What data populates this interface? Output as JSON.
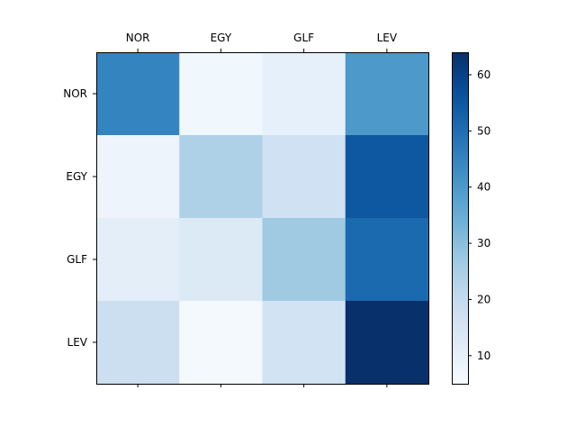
{
  "chart_data": {
    "type": "heatmap",
    "title": "",
    "xlabel": "",
    "ylabel": "",
    "x_categories": [
      "NOR",
      "EGY",
      "GLF",
      "LEV"
    ],
    "y_categories": [
      "NOR",
      "EGY",
      "GLF",
      "LEV"
    ],
    "x_tick_position": "top",
    "values": [
      [
        45,
        7,
        10,
        40
      ],
      [
        8,
        24,
        17,
        55
      ],
      [
        11,
        13,
        27,
        51
      ],
      [
        18,
        6,
        16,
        64
      ]
    ],
    "colormap": "Blues",
    "color_range": [
      5,
      64
    ],
    "colorbar": {
      "ticks": [
        10,
        20,
        30,
        40,
        50,
        60
      ],
      "tick_labels": [
        "10",
        "20",
        "30",
        "40",
        "50",
        "60"
      ]
    },
    "grid": false
  }
}
